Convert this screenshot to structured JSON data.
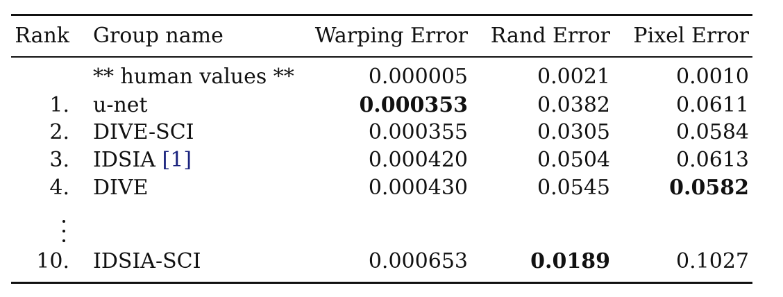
{
  "table": {
    "headers": {
      "rank": "Rank",
      "group": "Group name",
      "warping": "Warping Error",
      "rand": "Rand Error",
      "pixel": "Pixel Error"
    },
    "rows": [
      {
        "rank": "",
        "name": "** human values **",
        "warping": "0.000005",
        "rand": "0.0021",
        "pixel": "0.0010"
      },
      {
        "rank": "1.",
        "name": "u-net",
        "warping": "0.000353",
        "rand": "0.0382",
        "pixel": "0.0611"
      },
      {
        "rank": "2.",
        "name": "DIVE-SCI",
        "warping": "0.000355",
        "rand": "0.0305",
        "pixel": "0.0584"
      },
      {
        "rank": "3.",
        "name": "IDSIA",
        "cite_open": "[",
        "cite": "1",
        "cite_close": "]",
        "warping": "0.000420",
        "rand": "0.0504",
        "pixel": "0.0613"
      },
      {
        "rank": "4.",
        "name": "DIVE",
        "warping": "0.000430",
        "rand": "0.0545",
        "pixel": "0.0582"
      },
      {
        "rank": "10.",
        "name": "IDSIA-SCI",
        "warping": "0.000653",
        "rand": "0.0189",
        "pixel": "0.1027"
      }
    ]
  }
}
